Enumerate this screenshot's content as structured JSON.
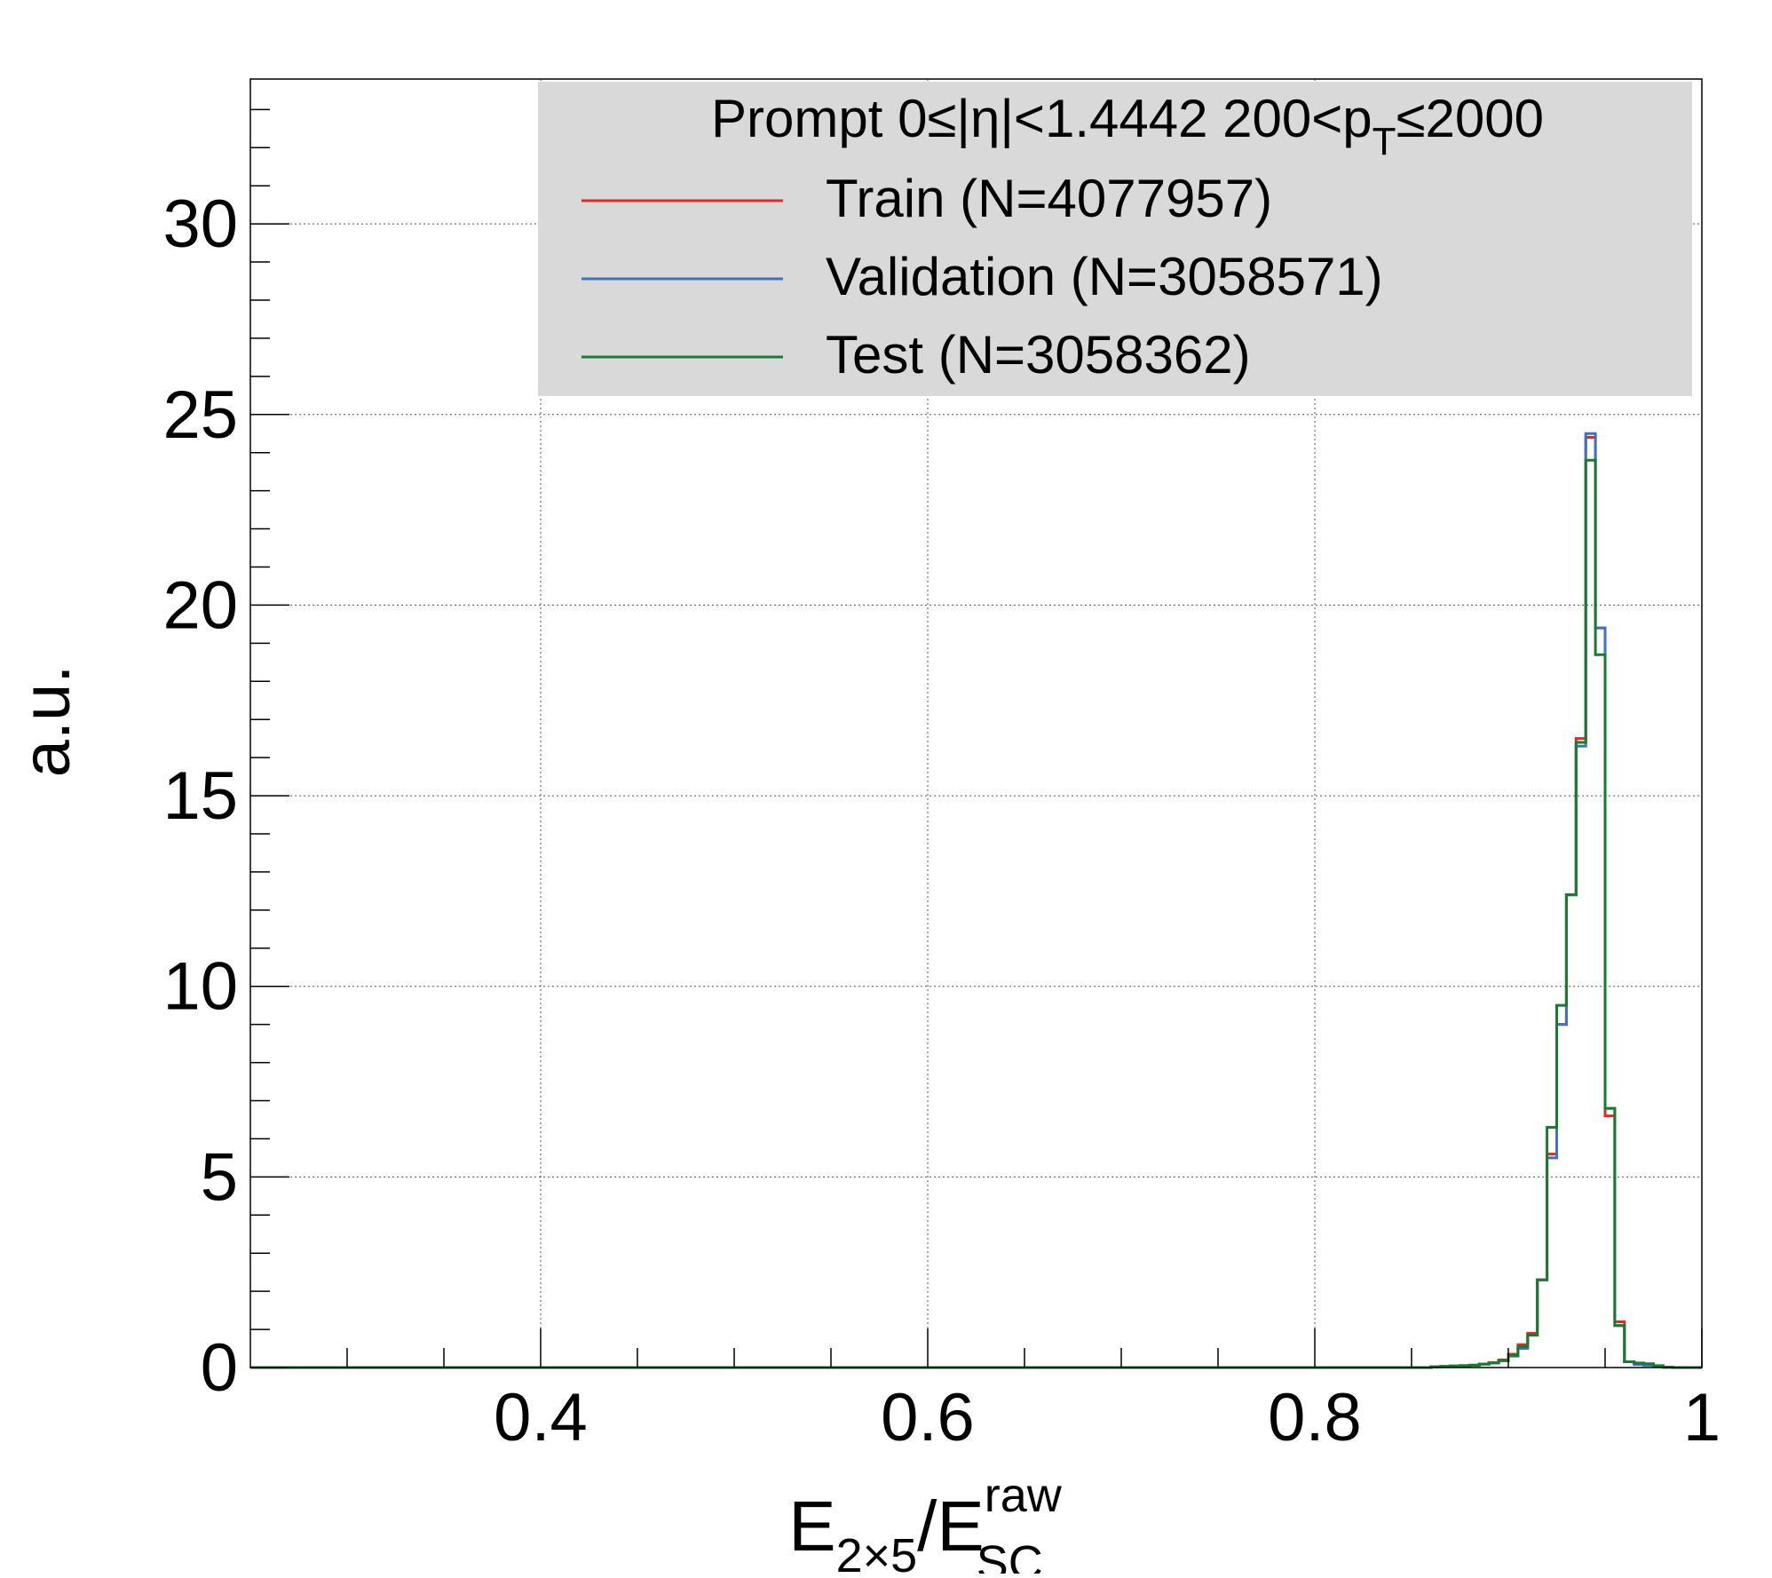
{
  "chart_data": {
    "type": "histogram",
    "xlabel": {
      "main": "E",
      "sub1": "2×5",
      "slash": "/E",
      "sup": "raw",
      "sub2": "SC"
    },
    "ylabel": "a.u.",
    "xlim": [
      0.25,
      1.0
    ],
    "ylim": [
      0,
      33.8
    ],
    "x_ticks": [
      {
        "value": 0.4,
        "label": "0.4"
      },
      {
        "value": 0.6,
        "label": "0.6"
      },
      {
        "value": 0.8,
        "label": "0.8"
      },
      {
        "value": 1.0,
        "label": "1"
      }
    ],
    "y_ticks": [
      {
        "value": 0,
        "label": "0"
      },
      {
        "value": 5,
        "label": "5"
      },
      {
        "value": 10,
        "label": "10"
      },
      {
        "value": 15,
        "label": "15"
      },
      {
        "value": 20,
        "label": "20"
      },
      {
        "value": 25,
        "label": "25"
      },
      {
        "value": 30,
        "label": "30"
      }
    ],
    "grid": true,
    "legend": {
      "placement": "top-right",
      "header": {
        "pre": "Prompt  0≤|η|<1.4442  200<p",
        "sub": "T",
        "post": "≤2000"
      }
    },
    "bin_edges_range": [
      0.86,
      0.985
    ],
    "bin_width": 0.005,
    "series": [
      {
        "name": "Train (N=4077957)",
        "color": "#e8281e",
        "values": [
          0.02,
          0.03,
          0.04,
          0.05,
          0.06,
          0.09,
          0.13,
          0.2,
          0.35,
          0.6,
          0.9,
          2.3,
          5.6,
          9.0,
          12.4,
          16.5,
          24.4,
          19.4,
          6.6,
          1.2,
          0.15,
          0.1,
          0.08,
          0.04,
          0.01
        ]
      },
      {
        "name": "Validation (N=3058571)",
        "color": "#3d72c4",
        "values": [
          0.02,
          0.03,
          0.04,
          0.05,
          0.06,
          0.09,
          0.12,
          0.18,
          0.3,
          0.5,
          0.85,
          2.3,
          5.5,
          9.0,
          12.4,
          16.3,
          24.5,
          19.4,
          6.8,
          1.1,
          0.15,
          0.08,
          0.06,
          0.03,
          0.01
        ]
      },
      {
        "name": "Test (N=3058362)",
        "color": "#1a7a2e",
        "values": [
          0.02,
          0.03,
          0.04,
          0.05,
          0.06,
          0.09,
          0.12,
          0.18,
          0.32,
          0.55,
          0.85,
          2.3,
          6.3,
          9.5,
          12.4,
          16.4,
          23.8,
          18.7,
          6.8,
          1.1,
          0.15,
          0.12,
          0.1,
          0.05,
          0.01
        ]
      }
    ]
  }
}
